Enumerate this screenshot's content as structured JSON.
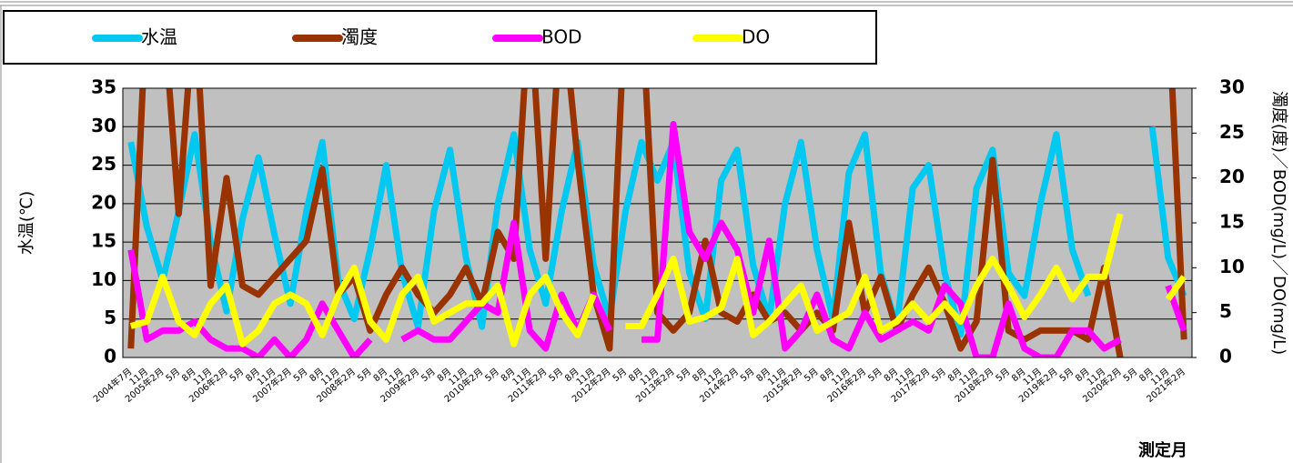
{
  "chart_data": {
    "type": "line",
    "legend": "top-left",
    "y_label": "水温(℃)",
    "y2_label": "濁度(度)／BOD(mg/L)／DO(mg/L)",
    "x_label": "測定月",
    "categories": [
      "2004年7月",
      "11月",
      "2005年2月",
      "5月",
      "8月",
      "11月",
      "2006年2月",
      "5月",
      "8月",
      "11月",
      "2007年2月",
      "5月",
      "8月",
      "11月",
      "2008年2月",
      "5月",
      "8月",
      "11月",
      "2009年2月",
      "5月",
      "8月",
      "11月",
      "2010年2月",
      "5月",
      "8月",
      "11月",
      "2011年2月",
      "5月",
      "8月",
      "11月",
      "2012年2月",
      "5月",
      "8月",
      "11月",
      "2013年2月",
      "5月",
      "8月",
      "11月",
      "2014年2月",
      "5月",
      "8月",
      "11月",
      "2015年2月",
      "5月",
      "8月",
      "11月",
      "2016年2月",
      "5月",
      "8月",
      "11月",
      "2017年2月",
      "5月",
      "8月",
      "11月",
      "2018年2月",
      "5月",
      "8月",
      "11月",
      "2019年2月",
      "5月",
      "8月",
      "11月",
      "2020年2月",
      "5月",
      "8月",
      "11月",
      "2021年2月"
    ],
    "series": [
      {
        "name": "水温",
        "color": "#00c8f0",
        "values": [
          28,
          17,
          10,
          19,
          29,
          15,
          6,
          18,
          26,
          16,
          7,
          19,
          28,
          10,
          5,
          14,
          25,
          11,
          4,
          19,
          27,
          13,
          4,
          20,
          29,
          14,
          7,
          19,
          28,
          12,
          5,
          19,
          28,
          23,
          28,
          11,
          5,
          23,
          27,
          12,
          5,
          20,
          28,
          14,
          5,
          24,
          29,
          11,
          4,
          22,
          25,
          11,
          3,
          22,
          27,
          11,
          8,
          20,
          29,
          14,
          8,
          null,
          null,
          null,
          30,
          13,
          8
        ]
      },
      {
        "name": "濁度",
        "color": "#993300",
        "axis": "y2",
        "values": [
          1,
          40,
          40,
          16,
          40,
          8,
          20,
          8,
          7,
          9,
          11,
          13,
          21,
          7,
          9,
          3,
          7,
          10,
          7,
          5,
          7,
          10,
          6,
          14,
          11,
          40,
          11,
          40,
          22,
          7,
          1,
          40,
          40,
          5,
          3,
          5,
          13,
          5,
          4,
          7,
          4,
          5,
          3,
          5,
          3,
          15,
          5,
          9,
          3,
          7,
          10,
          6,
          1,
          4,
          22,
          3,
          2,
          3,
          3,
          3,
          2,
          10,
          0,
          null,
          null,
          40,
          2
        ]
      },
      {
        "name": "BOD",
        "color": "#ff00ff",
        "axis": "y2",
        "values": [
          12,
          2,
          3,
          3,
          4,
          2,
          1,
          1,
          0,
          2,
          0,
          2,
          6,
          3,
          0,
          2,
          null,
          2,
          3,
          2,
          2,
          4,
          6,
          5,
          15,
          3,
          1,
          7,
          3,
          7,
          3,
          null,
          2,
          2,
          26,
          14,
          11,
          15,
          12,
          5,
          13,
          1,
          3,
          7,
          2,
          1,
          5,
          2,
          3,
          4,
          3,
          8,
          6,
          0,
          0,
          6,
          1,
          0,
          0,
          3,
          3,
          1,
          2,
          null,
          null,
          8,
          3
        ]
      },
      {
        "name": "DO",
        "color": "#ffff00",
        "axis": "y2",
        "values": [
          3.5,
          4,
          9,
          4,
          2.5,
          6,
          8,
          1.5,
          3,
          6,
          7,
          6,
          2.5,
          7,
          10,
          4,
          2,
          7,
          9,
          4,
          5,
          6,
          6,
          8,
          1.5,
          7,
          9,
          5,
          2.5,
          7,
          null,
          3.5,
          3.5,
          7,
          11,
          4,
          4.5,
          5.5,
          11,
          2.5,
          4,
          6,
          8,
          3,
          4,
          5,
          9,
          3,
          4,
          6,
          4,
          6,
          4,
          8,
          11,
          8,
          4.5,
          7,
          10,
          6.5,
          9,
          9,
          16,
          null,
          null,
          6.5,
          9
        ]
      }
    ],
    "ylim": [
      0,
      35
    ],
    "yticks": [
      0,
      5,
      10,
      15,
      20,
      25,
      30,
      35
    ],
    "y2lim": [
      0,
      30
    ],
    "y2ticks": [
      0,
      5,
      10,
      15,
      20,
      25,
      30
    ],
    "grid": true
  }
}
